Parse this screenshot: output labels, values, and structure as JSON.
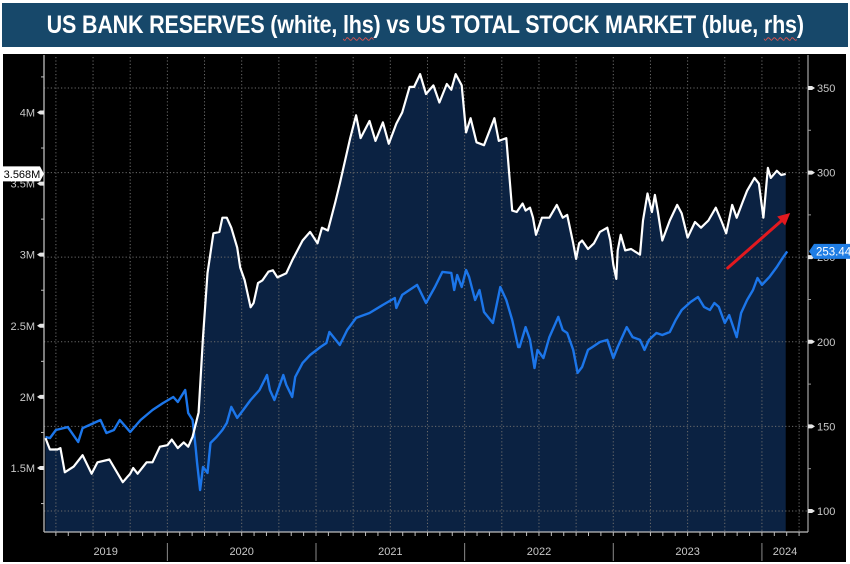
{
  "title": {
    "segments": [
      {
        "text": "US BANK RESERVES (white, ",
        "spellcheck_flag": false
      },
      {
        "text": "lhs",
        "spellcheck_flag": true
      },
      {
        "text": ") vs US TOTAL STOCK MARKET (blue, ",
        "spellcheck_flag": false
      },
      {
        "text": "rhs",
        "spellcheck_flag": true
      },
      {
        "text": ")",
        "spellcheck_flag": false
      }
    ],
    "background": "#17486a",
    "color": "#ffffff"
  },
  "chart_data": {
    "type": "line",
    "title": "US BANK RESERVES (white, lhs) vs US TOTAL STOCK MARKET (blue, rhs)",
    "xlabel": "",
    "x_unit": "decimal year",
    "xlim": [
      2019.17,
      2024.31
    ],
    "x_year_labels": [
      "2019",
      "2020",
      "2021",
      "2022",
      "2023",
      "2024"
    ],
    "x_year_starts": [
      2019,
      2020,
      2021,
      2022,
      2023,
      2024
    ],
    "y_left": {
      "label": "",
      "lim": [
        1.05,
        4.39
      ],
      "ticks": [
        1.5,
        2,
        2.5,
        3,
        3.5,
        4
      ],
      "tick_labels": [
        "1.5M",
        "2M",
        "2.5M",
        "3M",
        "3.5M",
        "4M"
      ],
      "minor_step": 0.25
    },
    "y_right": {
      "label": "",
      "lim": [
        87.6,
        368.3
      ],
      "ticks": [
        100,
        150,
        200,
        250,
        300,
        350
      ],
      "tick_labels": [
        "100",
        "150",
        "200",
        "250",
        "300",
        "350"
      ],
      "minor_step": 25
    },
    "grid": {
      "horizontal": "right-axis major ticks",
      "vertical": "quarterly",
      "style": "dotted",
      "color": "#6b6b6b"
    },
    "background": "#000000",
    "series": [
      {
        "name": "US Bank Reserves",
        "axis": "left",
        "color": "#ffffff",
        "filled": true,
        "fill_color": "#0b2242",
        "last_value_label": "3.568M",
        "last_value": 3.568,
        "points": [
          [
            2019.18,
            1.71
          ],
          [
            2019.21,
            1.63
          ],
          [
            2019.26,
            1.63
          ],
          [
            2019.28,
            1.64
          ],
          [
            2019.31,
            1.47
          ],
          [
            2019.37,
            1.51
          ],
          [
            2019.43,
            1.59
          ],
          [
            2019.49,
            1.46
          ],
          [
            2019.53,
            1.54
          ],
          [
            2019.61,
            1.56
          ],
          [
            2019.7,
            1.4
          ],
          [
            2019.75,
            1.46
          ],
          [
            2019.77,
            1.5
          ],
          [
            2019.8,
            1.46
          ],
          [
            2019.86,
            1.54
          ],
          [
            2019.9,
            1.54
          ],
          [
            2019.95,
            1.65
          ],
          [
            2020.0,
            1.66
          ],
          [
            2020.03,
            1.7
          ],
          [
            2020.07,
            1.64
          ],
          [
            2020.11,
            1.68
          ],
          [
            2020.14,
            1.65
          ],
          [
            2020.17,
            1.72
          ],
          [
            2020.21,
            1.89
          ],
          [
            2020.24,
            2.42
          ],
          [
            2020.27,
            2.87
          ],
          [
            2020.31,
            3.15
          ],
          [
            2020.35,
            3.16
          ],
          [
            2020.37,
            3.26
          ],
          [
            2020.4,
            3.26
          ],
          [
            2020.43,
            3.19
          ],
          [
            2020.47,
            3.05
          ],
          [
            2020.49,
            2.91
          ],
          [
            2020.52,
            2.82
          ],
          [
            2020.56,
            2.63
          ],
          [
            2020.58,
            2.66
          ],
          [
            2020.61,
            2.8
          ],
          [
            2020.64,
            2.82
          ],
          [
            2020.68,
            2.88
          ],
          [
            2020.71,
            2.89
          ],
          [
            2020.74,
            2.84
          ],
          [
            2020.8,
            2.87
          ],
          [
            2020.84,
            2.96
          ],
          [
            2020.91,
            3.1
          ],
          [
            2020.96,
            3.16
          ],
          [
            2021.01,
            3.08
          ],
          [
            2021.04,
            3.19
          ],
          [
            2021.08,
            3.17
          ],
          [
            2021.13,
            3.37
          ],
          [
            2021.16,
            3.5
          ],
          [
            2021.23,
            3.82
          ],
          [
            2021.27,
            3.98
          ],
          [
            2021.3,
            3.82
          ],
          [
            2021.36,
            3.94
          ],
          [
            2021.4,
            3.8
          ],
          [
            2021.45,
            3.93
          ],
          [
            2021.49,
            3.78
          ],
          [
            2021.54,
            3.92
          ],
          [
            2021.58,
            4.0
          ],
          [
            2021.63,
            4.18
          ],
          [
            2021.66,
            4.18
          ],
          [
            2021.7,
            4.27
          ],
          [
            2021.74,
            4.13
          ],
          [
            2021.79,
            4.19
          ],
          [
            2021.83,
            4.07
          ],
          [
            2021.88,
            4.2
          ],
          [
            2021.91,
            4.16
          ],
          [
            2021.94,
            4.27
          ],
          [
            2021.98,
            4.19
          ],
          [
            2022.01,
            3.86
          ],
          [
            2022.04,
            3.96
          ],
          [
            2022.08,
            3.79
          ],
          [
            2022.13,
            3.77
          ],
          [
            2022.2,
            3.96
          ],
          [
            2022.23,
            3.8
          ],
          [
            2022.28,
            3.82
          ],
          [
            2022.32,
            3.31
          ],
          [
            2022.35,
            3.3
          ],
          [
            2022.39,
            3.36
          ],
          [
            2022.41,
            3.31
          ],
          [
            2022.44,
            3.33
          ],
          [
            2022.46,
            3.26
          ],
          [
            2022.48,
            3.14
          ],
          [
            2022.52,
            3.26
          ],
          [
            2022.57,
            3.26
          ],
          [
            2022.62,
            3.35
          ],
          [
            2022.66,
            3.26
          ],
          [
            2022.69,
            3.28
          ],
          [
            2022.73,
            3.08
          ],
          [
            2022.75,
            2.97
          ],
          [
            2022.77,
            3.08
          ],
          [
            2022.79,
            3.1
          ],
          [
            2022.83,
            3.04
          ],
          [
            2022.87,
            3.08
          ],
          [
            2022.91,
            3.16
          ],
          [
            2022.96,
            3.19
          ],
          [
            2022.98,
            3.1
          ],
          [
            2023.0,
            2.93
          ],
          [
            2023.02,
            2.83
          ],
          [
            2023.03,
            3.03
          ],
          [
            2023.05,
            3.14
          ],
          [
            2023.08,
            3.03
          ],
          [
            2023.12,
            3.04
          ],
          [
            2023.18,
            3.0
          ],
          [
            2023.2,
            3.24
          ],
          [
            2023.23,
            3.43
          ],
          [
            2023.26,
            3.3
          ],
          [
            2023.28,
            3.42
          ],
          [
            2023.3,
            3.3
          ],
          [
            2023.33,
            3.1
          ],
          [
            2023.38,
            3.24
          ],
          [
            2023.43,
            3.35
          ],
          [
            2023.46,
            3.29
          ],
          [
            2023.5,
            3.12
          ],
          [
            2023.55,
            3.23
          ],
          [
            2023.59,
            3.19
          ],
          [
            2023.64,
            3.24
          ],
          [
            2023.69,
            3.33
          ],
          [
            2023.73,
            3.23
          ],
          [
            2023.76,
            3.15
          ],
          [
            2023.8,
            3.35
          ],
          [
            2023.83,
            3.26
          ],
          [
            2023.87,
            3.37
          ],
          [
            2023.9,
            3.45
          ],
          [
            2023.95,
            3.54
          ],
          [
            2023.98,
            3.5
          ],
          [
            2024.01,
            3.26
          ],
          [
            2024.04,
            3.61
          ],
          [
            2024.06,
            3.54
          ],
          [
            2024.1,
            3.59
          ],
          [
            2024.13,
            3.56
          ],
          [
            2024.16,
            3.568
          ]
        ]
      },
      {
        "name": "US Total Stock Market",
        "axis": "right",
        "color": "#1c76ea",
        "filled": false,
        "last_value_label": "253.44",
        "last_value": 253.44,
        "label_color": "#1f7de4",
        "points": [
          [
            2019.18,
            143.7
          ],
          [
            2019.21,
            143.1
          ],
          [
            2019.25,
            147.9
          ],
          [
            2019.33,
            149.6
          ],
          [
            2019.4,
            140.8
          ],
          [
            2019.43,
            149.0
          ],
          [
            2019.55,
            153.8
          ],
          [
            2019.59,
            146.1
          ],
          [
            2019.64,
            147.9
          ],
          [
            2019.68,
            153.8
          ],
          [
            2019.75,
            146.7
          ],
          [
            2019.82,
            153.8
          ],
          [
            2019.9,
            159.7
          ],
          [
            2019.97,
            163.8
          ],
          [
            2020.04,
            167.4
          ],
          [
            2020.07,
            164.4
          ],
          [
            2020.12,
            171.5
          ],
          [
            2020.14,
            157.9
          ],
          [
            2020.17,
            153.8
          ],
          [
            2020.19,
            137.8
          ],
          [
            2020.2,
            128.4
          ],
          [
            2020.22,
            112.4
          ],
          [
            2020.24,
            126.0
          ],
          [
            2020.27,
            122.5
          ],
          [
            2020.29,
            140.2
          ],
          [
            2020.33,
            143.7
          ],
          [
            2020.37,
            147.9
          ],
          [
            2020.4,
            152.0
          ],
          [
            2020.43,
            161.5
          ],
          [
            2020.47,
            155.0
          ],
          [
            2020.51,
            159.7
          ],
          [
            2020.56,
            165.6
          ],
          [
            2020.62,
            171.5
          ],
          [
            2020.67,
            180.4
          ],
          [
            2020.69,
            171.5
          ],
          [
            2020.72,
            165.6
          ],
          [
            2020.78,
            180.4
          ],
          [
            2020.8,
            174.5
          ],
          [
            2020.84,
            167.4
          ],
          [
            2020.86,
            179.2
          ],
          [
            2020.91,
            187.5
          ],
          [
            2020.96,
            192.2
          ],
          [
            2021.03,
            196.9
          ],
          [
            2021.07,
            199.3
          ],
          [
            2021.09,
            205.8
          ],
          [
            2021.16,
            198.1
          ],
          [
            2021.21,
            207.0
          ],
          [
            2021.27,
            214.1
          ],
          [
            2021.36,
            217.0
          ],
          [
            2021.45,
            221.8
          ],
          [
            2021.53,
            225.9
          ],
          [
            2021.54,
            220.0
          ],
          [
            2021.58,
            227.7
          ],
          [
            2021.68,
            233.6
          ],
          [
            2021.74,
            222.9
          ],
          [
            2021.8,
            232.4
          ],
          [
            2021.85,
            241.3
          ],
          [
            2021.91,
            240.7
          ],
          [
            2021.93,
            230.6
          ],
          [
            2021.95,
            239.5
          ],
          [
            2021.98,
            232.4
          ],
          [
            2022.01,
            242.4
          ],
          [
            2022.03,
            238.3
          ],
          [
            2022.07,
            224.7
          ],
          [
            2022.1,
            230.6
          ],
          [
            2022.13,
            217.6
          ],
          [
            2022.19,
            211.1
          ],
          [
            2022.24,
            232.4
          ],
          [
            2022.28,
            224.7
          ],
          [
            2022.32,
            212.9
          ],
          [
            2022.36,
            196.9
          ],
          [
            2022.37,
            196.9
          ],
          [
            2022.41,
            208.7
          ],
          [
            2022.44,
            201.1
          ],
          [
            2022.47,
            184.5
          ],
          [
            2022.49,
            195.2
          ],
          [
            2022.53,
            190.4
          ],
          [
            2022.57,
            202.8
          ],
          [
            2022.63,
            214.7
          ],
          [
            2022.66,
            207.0
          ],
          [
            2022.69,
            205.2
          ],
          [
            2022.73,
            195.2
          ],
          [
            2022.76,
            181.6
          ],
          [
            2022.79,
            185.1
          ],
          [
            2022.83,
            195.2
          ],
          [
            2022.86,
            196.9
          ],
          [
            2022.91,
            199.9
          ],
          [
            2022.96,
            201.1
          ],
          [
            2023.0,
            190.4
          ],
          [
            2023.03,
            196.9
          ],
          [
            2023.09,
            208.7
          ],
          [
            2023.13,
            202.8
          ],
          [
            2023.18,
            201.1
          ],
          [
            2023.21,
            195.2
          ],
          [
            2023.24,
            201.1
          ],
          [
            2023.29,
            205.2
          ],
          [
            2023.33,
            204.0
          ],
          [
            2023.38,
            205.8
          ],
          [
            2023.42,
            212.9
          ],
          [
            2023.46,
            218.8
          ],
          [
            2023.52,
            223.5
          ],
          [
            2023.57,
            226.5
          ],
          [
            2023.61,
            220.6
          ],
          [
            2023.65,
            218.8
          ],
          [
            2023.68,
            222.9
          ],
          [
            2023.71,
            220.6
          ],
          [
            2023.75,
            211.1
          ],
          [
            2023.78,
            215.8
          ],
          [
            2023.83,
            202.8
          ],
          [
            2023.86,
            217.0
          ],
          [
            2023.9,
            224.7
          ],
          [
            2023.94,
            230.6
          ],
          [
            2023.97,
            237.7
          ],
          [
            2024.0,
            233.6
          ],
          [
            2024.05,
            238.3
          ],
          [
            2024.1,
            244.2
          ],
          [
            2024.13,
            248.3
          ],
          [
            2024.17,
            253.44
          ]
        ]
      }
    ],
    "annotations": [
      {
        "type": "arrow",
        "color": "#e2191f",
        "axis": "right",
        "from": [
          2023.77,
          243.6
        ],
        "to": [
          2024.19,
          276.1
        ]
      }
    ]
  }
}
